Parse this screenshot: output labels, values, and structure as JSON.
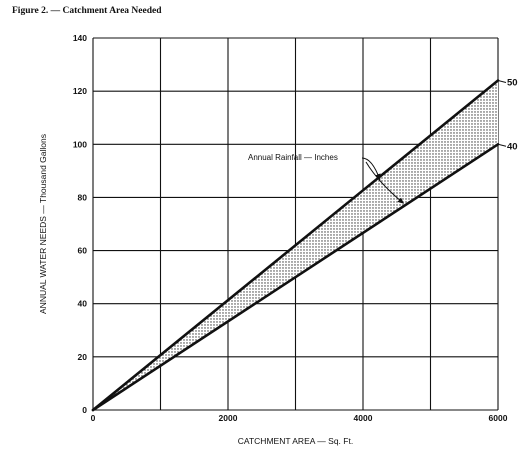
{
  "figure": {
    "title": "Figure 2. — Catchment Area Needed"
  },
  "chart_data": {
    "type": "line",
    "title": "Figure 2. — Catchment Area Needed",
    "xlabel": "CATCHMENT AREA — Sq. Ft.",
    "ylabel": "ANNUAL WATER NEEDS — Thousand Gallons",
    "xlim": [
      0,
      6000
    ],
    "ylim": [
      0,
      140
    ],
    "x_ticks": [
      0,
      2000,
      4000,
      6000
    ],
    "y_ticks": [
      0,
      20,
      40,
      60,
      80,
      100,
      120,
      140
    ],
    "x_tick_labels": [
      "0",
      "2000",
      "4000",
      "6000"
    ],
    "y_tick_labels": [
      "0",
      "20",
      "40",
      "60",
      "80",
      "100",
      "120",
      "140"
    ],
    "grid": true,
    "series": [
      {
        "name": "50",
        "x": [
          0,
          6000
        ],
        "y": [
          0,
          124
        ]
      },
      {
        "name": "40",
        "x": [
          0,
          6000
        ],
        "y": [
          0,
          100
        ]
      }
    ],
    "shaded_band": true,
    "annotation": "Annual Rainfall — Inches"
  },
  "colors": {
    "line": "#111111",
    "grid": "#111111",
    "band_dots": "#333333"
  }
}
